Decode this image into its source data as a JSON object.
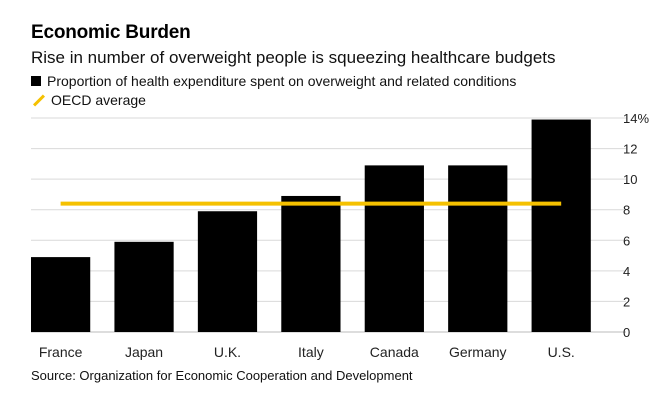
{
  "title": "Economic Burden",
  "subtitle": "Rise in number of overweight people is squeezing healthcare budgets",
  "legend": {
    "bar_label": "Proportion of health expenditure spent on overweight and related conditions",
    "line_label": "OECD average"
  },
  "source": "Source: Organization for Economic Cooperation and Development",
  "colors": {
    "bar": "#000000",
    "line": "#f5c100",
    "grid": "#d9d9d9"
  },
  "chart_data": {
    "type": "bar",
    "categories": [
      "France",
      "Japan",
      "U.K.",
      "Italy",
      "Canada",
      "Germany",
      "U.S."
    ],
    "series": [
      {
        "name": "Proportion of health expenditure spent on overweight and related conditions",
        "values": [
          4.9,
          5.9,
          7.9,
          8.9,
          10.9,
          10.9,
          13.9
        ]
      },
      {
        "name": "OECD average",
        "type": "line",
        "value": 8.4
      }
    ],
    "y_ticks": [
      "0",
      "2",
      "4",
      "6",
      "8",
      "10",
      "12",
      "14%"
    ],
    "ylim": [
      0,
      14
    ],
    "y_axis_position": "right",
    "grid": true,
    "legend_position": "top-left"
  }
}
